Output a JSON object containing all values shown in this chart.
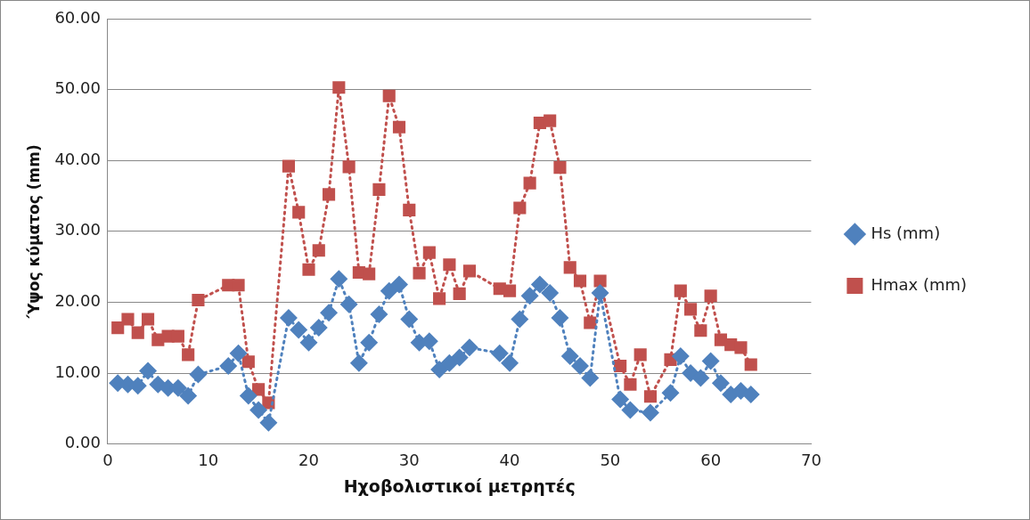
{
  "chart_data": {
    "type": "line",
    "xlabel": "Ηχοβολιστικοί μετρητές",
    "ylabel": "Ύψος κύματος (mm)",
    "xlim": [
      0,
      70
    ],
    "xticks": [
      0,
      10,
      20,
      30,
      40,
      50,
      60,
      70
    ],
    "ylim": [
      0,
      60
    ],
    "yticks": [
      {
        "value": 0,
        "label": "0.00"
      },
      {
        "value": 10,
        "label": "10.00"
      },
      {
        "value": 20,
        "label": "20.00"
      },
      {
        "value": 30,
        "label": "30.00"
      },
      {
        "value": 40,
        "label": "40.00"
      },
      {
        "value": 50,
        "label": "50.00"
      },
      {
        "value": 60,
        "label": "60.00"
      }
    ],
    "grid": "y",
    "legend": "right",
    "line_style": "dotted",
    "series": [
      {
        "name": "Hs (mm)",
        "color": "#4f81bd",
        "marker": "diamond",
        "x": [
          1,
          2,
          3,
          4,
          5,
          6,
          7,
          8,
          9,
          12,
          13,
          14,
          15,
          16,
          18,
          19,
          20,
          21,
          22,
          23,
          24,
          25,
          26,
          27,
          28,
          29,
          30,
          31,
          32,
          33,
          34,
          35,
          36,
          39,
          40,
          41,
          42,
          43,
          44,
          45,
          46,
          47,
          48,
          49,
          51,
          52,
          54,
          56,
          57,
          58,
          59,
          60,
          61,
          62,
          63,
          64
        ],
        "values": [
          8.6,
          8.4,
          8.2,
          10.3,
          8.4,
          7.9,
          7.9,
          6.8,
          9.8,
          11.0,
          12.8,
          6.8,
          4.8,
          3.0,
          17.8,
          16.1,
          14.3,
          16.4,
          18.5,
          23.3,
          19.7,
          11.4,
          14.3,
          18.3,
          21.6,
          22.5,
          17.6,
          14.3,
          14.5,
          10.5,
          11.4,
          12.2,
          13.6,
          12.8,
          11.4,
          17.6,
          20.9,
          22.5,
          21.3,
          17.8,
          12.4,
          11.0,
          9.3,
          21.3,
          6.3,
          4.8,
          4.4,
          7.2,
          12.4,
          10.0,
          9.3,
          11.7,
          8.6,
          7.0,
          7.5,
          7.0
        ]
      },
      {
        "name": "Hmax (mm)",
        "color": "#c0504d",
        "marker": "square",
        "x": [
          1,
          2,
          3,
          4,
          5,
          6,
          7,
          8,
          9,
          12,
          13,
          14,
          15,
          16,
          18,
          19,
          20,
          21,
          22,
          23,
          24,
          25,
          26,
          27,
          28,
          29,
          30,
          31,
          32,
          33,
          34,
          35,
          36,
          39,
          40,
          41,
          42,
          43,
          44,
          45,
          46,
          47,
          48,
          49,
          51,
          52,
          53,
          54,
          56,
          57,
          58,
          59,
          60,
          61,
          62,
          63,
          64
        ],
        "values": [
          16.4,
          17.6,
          15.7,
          17.6,
          14.7,
          15.2,
          15.2,
          12.6,
          20.3,
          22.4,
          22.4,
          11.6,
          7.7,
          5.8,
          39.2,
          32.7,
          24.6,
          27.3,
          35.2,
          50.3,
          39.1,
          24.2,
          24.0,
          35.9,
          49.1,
          44.7,
          33.0,
          24.1,
          27.0,
          20.5,
          25.3,
          21.2,
          24.4,
          21.9,
          21.6,
          33.3,
          36.8,
          45.3,
          45.6,
          39.0,
          24.9,
          23.0,
          17.1,
          23.0,
          11.0,
          8.4,
          12.6,
          6.7,
          11.9,
          21.6,
          19.0,
          16.0,
          20.9,
          14.7,
          14.0,
          13.6,
          11.2
        ]
      }
    ]
  }
}
